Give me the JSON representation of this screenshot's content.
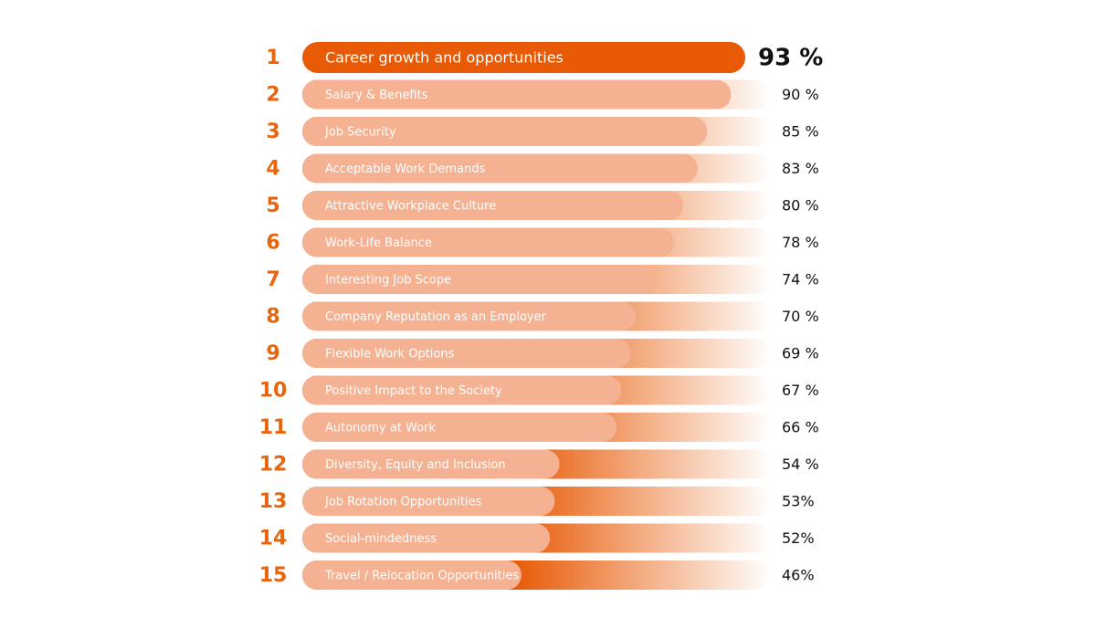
{
  "chart_data": {
    "type": "bar",
    "ranks": [
      1,
      2,
      3,
      4,
      5,
      6,
      7,
      8,
      9,
      10,
      11,
      12,
      13,
      14,
      15
    ],
    "categories": [
      "Career growth and opportunities",
      "Salary & Benefits",
      "Job Security",
      "Acceptable Work Demands",
      "Attractive Workplace Culture",
      "Work-Life Balance",
      "Interesting Job Scope",
      "Company Reputation as an Employer",
      "Flexible Work Options",
      "Positive Impact to the Society",
      "Autonomy at Work",
      "Diversity, Equity and Inclusion",
      "Job Rotation Opportunities",
      "Social-mindedness",
      "Travel / Relocation Opportunities"
    ],
    "values": [
      93,
      90,
      85,
      83,
      80,
      78,
      74,
      70,
      69,
      67,
      66,
      54,
      53,
      52,
      46
    ],
    "value_labels": [
      "93 %",
      "90 %",
      "85 %",
      "83 %",
      "80 %",
      "78 %",
      "74 %",
      "70 %",
      "69 %",
      "67 %",
      "66 %",
      "54 %",
      "53%",
      "52%",
      "46%"
    ],
    "color": "#f5b293",
    "highlight_color": "#e85a06",
    "rank_color": "#e8650f"
  }
}
